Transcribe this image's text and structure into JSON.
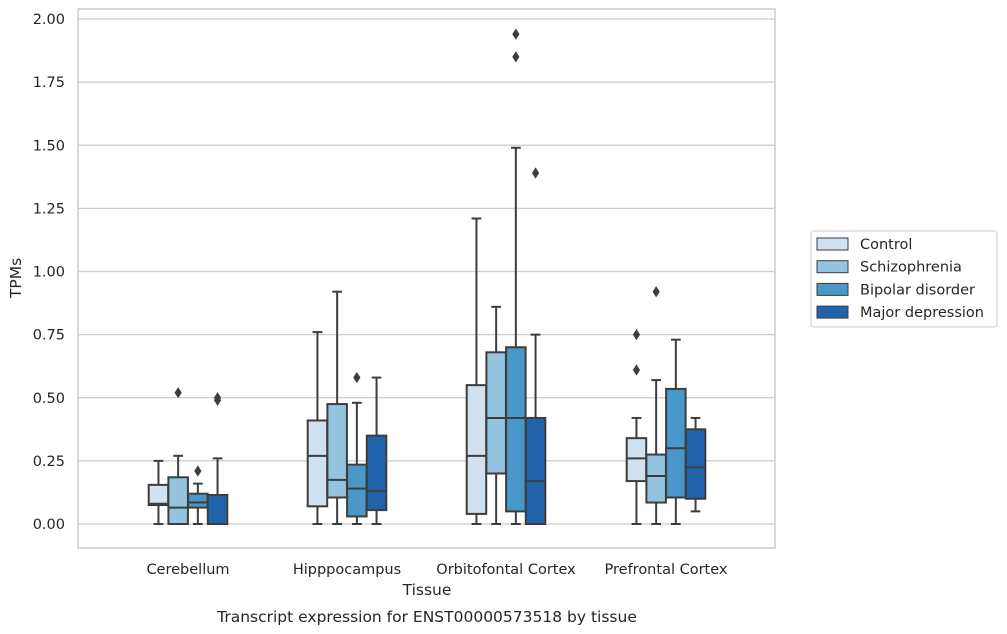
{
  "chart_data": {
    "type": "box",
    "caption": "Transcript expression for ENST00000573518 by tissue",
    "xlabel": "Tissue",
    "ylabel": "TPMs",
    "ylim": [
      -0.095,
      2.04
    ],
    "yticks": [
      "0.00",
      "0.25",
      "0.50",
      "0.75",
      "1.00",
      "1.25",
      "1.50",
      "1.75",
      "2.00"
    ],
    "ytick_values": [
      0,
      0.25,
      0.5,
      0.75,
      1.0,
      1.25,
      1.5,
      1.75,
      2.0
    ],
    "grid": true,
    "legend_position": "right",
    "categories": [
      "Cerebellum",
      "Hipppocampus",
      "Orbitofontal Cortex",
      "Prefrontal Cortex"
    ],
    "series": [
      {
        "name": "Control",
        "color": "#d0e1f2",
        "boxes": [
          {
            "whisker_low": 0.0,
            "q1": 0.075,
            "median": 0.08,
            "q3": 0.155,
            "whisker_high": 0.25,
            "outliers": []
          },
          {
            "whisker_low": 0.0,
            "q1": 0.07,
            "median": 0.27,
            "q3": 0.41,
            "whisker_high": 0.76,
            "outliers": []
          },
          {
            "whisker_low": 0.0,
            "q1": 0.04,
            "median": 0.27,
            "q3": 0.55,
            "whisker_high": 1.21,
            "outliers": []
          },
          {
            "whisker_low": 0.0,
            "q1": 0.17,
            "median": 0.26,
            "q3": 0.34,
            "whisker_high": 0.42,
            "outliers": [
              0.61,
              0.75
            ]
          }
        ]
      },
      {
        "name": "Schizophrenia",
        "color": "#94c4df",
        "boxes": [
          {
            "whisker_low": 0.0,
            "q1": 0.0,
            "median": 0.065,
            "q3": 0.185,
            "whisker_high": 0.27,
            "outliers": [
              0.52
            ]
          },
          {
            "whisker_low": 0.0,
            "q1": 0.105,
            "median": 0.175,
            "q3": 0.475,
            "whisker_high": 0.92,
            "outliers": []
          },
          {
            "whisker_low": 0.0,
            "q1": 0.2,
            "median": 0.42,
            "q3": 0.68,
            "whisker_high": 0.86,
            "outliers": []
          },
          {
            "whisker_low": 0.0,
            "q1": 0.085,
            "median": 0.19,
            "q3": 0.275,
            "whisker_high": 0.57,
            "outliers": [
              0.92
            ]
          }
        ]
      },
      {
        "name": "Bipolar disorder",
        "color": "#4a98c9",
        "boxes": [
          {
            "whisker_low": 0.0,
            "q1": 0.065,
            "median": 0.085,
            "q3": 0.12,
            "whisker_high": 0.16,
            "outliers": [
              0.21
            ]
          },
          {
            "whisker_low": 0.0,
            "q1": 0.03,
            "median": 0.14,
            "q3": 0.235,
            "whisker_high": 0.48,
            "outliers": [
              0.58
            ]
          },
          {
            "whisker_low": 0.0,
            "q1": 0.05,
            "median": 0.42,
            "q3": 0.7,
            "whisker_high": 1.49,
            "outliers": [
              1.85,
              1.94
            ]
          },
          {
            "whisker_low": 0.0,
            "q1": 0.105,
            "median": 0.3,
            "q3": 0.535,
            "whisker_high": 0.73,
            "outliers": []
          }
        ]
      },
      {
        "name": "Major depression",
        "color": "#2163aa",
        "boxes": [
          {
            "whisker_low": 0.0,
            "q1": 0.0,
            "median": 0.0,
            "q3": 0.115,
            "whisker_high": 0.26,
            "outliers": [
              0.49,
              0.5
            ]
          },
          {
            "whisker_low": 0.0,
            "q1": 0.055,
            "median": 0.13,
            "q3": 0.35,
            "whisker_high": 0.58,
            "outliers": []
          },
          {
            "whisker_low": 0.0,
            "q1": 0.0,
            "median": 0.17,
            "q3": 0.42,
            "whisker_high": 0.75,
            "outliers": [
              1.39
            ]
          },
          {
            "whisker_low": 0.05,
            "q1": 0.1,
            "median": 0.225,
            "q3": 0.375,
            "whisker_high": 0.42,
            "outliers": []
          }
        ]
      }
    ]
  }
}
